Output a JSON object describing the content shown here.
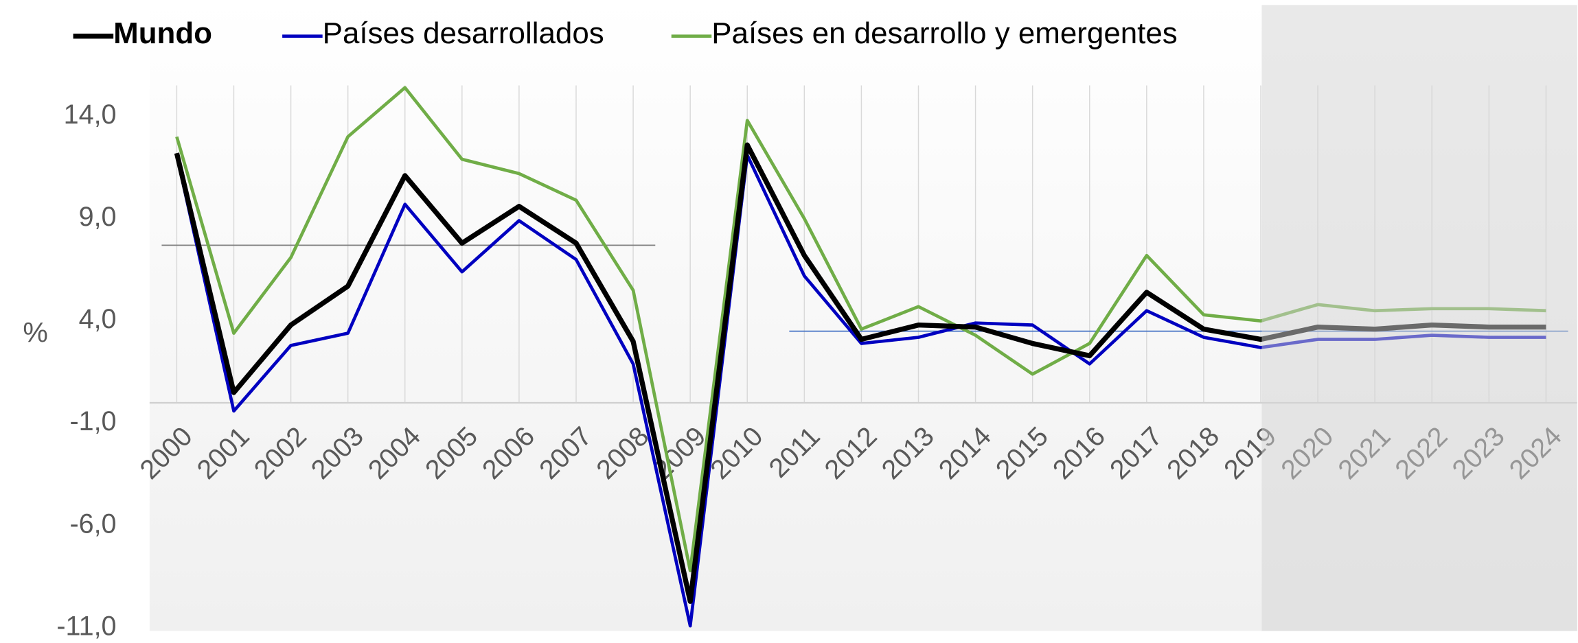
{
  "chart_data": {
    "type": "line",
    "y_label": "%",
    "categories": [
      "2000",
      "2001",
      "2002",
      "2003",
      "2004",
      "2005",
      "2006",
      "2007",
      "2008",
      "2009",
      "2010",
      "2011",
      "2012",
      "2013",
      "2014",
      "2015",
      "2016",
      "2017",
      "2018",
      "2019",
      "2020",
      "2021",
      "2022",
      "2023",
      "2024"
    ],
    "series": [
      {
        "name": "Mundo",
        "color": "#000000",
        "values": [
          12.2,
          0.5,
          3.8,
          5.7,
          11.1,
          7.8,
          9.6,
          7.8,
          3.0,
          -9.7,
          12.6,
          7.2,
          3.1,
          3.8,
          3.7,
          2.9,
          2.3,
          5.4,
          3.6,
          3.1,
          3.7,
          3.6,
          3.8,
          3.7,
          3.7
        ]
      },
      {
        "name": "Países desarrollados",
        "color": "#0000c0",
        "values": [
          12.1,
          -0.4,
          2.8,
          3.4,
          9.7,
          6.4,
          8.9,
          7.0,
          1.9,
          -10.9,
          12.1,
          6.2,
          2.9,
          3.2,
          3.9,
          3.8,
          1.9,
          4.5,
          3.2,
          2.7,
          3.1,
          3.1,
          3.3,
          3.2,
          3.2
        ]
      },
      {
        "name": "Países en desarrollo y emergentes",
        "color": "#70ad47",
        "values": [
          13.0,
          3.4,
          7.1,
          13.0,
          15.4,
          11.9,
          11.2,
          9.9,
          5.5,
          -8.2,
          13.8,
          9.0,
          3.6,
          4.7,
          3.3,
          1.4,
          2.9,
          7.2,
          4.3,
          4.0,
          4.8,
          4.5,
          4.6,
          4.6,
          4.5
        ]
      }
    ],
    "reference_lines": [
      {
        "value": 7.7,
        "color": "#808080",
        "x": [
          "2000",
          "2008"
        ]
      },
      {
        "value": 3.5,
        "color": "#4472c4",
        "x": [
          "2011",
          "2024"
        ]
      }
    ],
    "forecast_from": "2019",
    "ylim": [
      -11,
      16
    ],
    "yticks": [
      {
        "value": -11,
        "label": "-11,0"
      },
      {
        "value": -6,
        "label": "-6,0"
      },
      {
        "value": -1,
        "label": "-1,0"
      },
      {
        "value": 4,
        "label": "4,0"
      },
      {
        "value": 9,
        "label": "9,0"
      },
      {
        "value": 14,
        "label": "14,0"
      }
    ],
    "grid": true,
    "legend": "top"
  }
}
